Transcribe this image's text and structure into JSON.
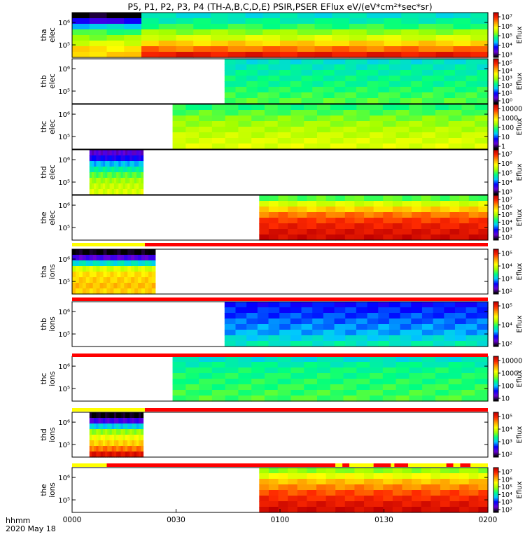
{
  "title": "P5, P1, P2, P3, P4 (TH-A,B,C,D,E) PSIR,PSER EFlux eV/(eV*cm²*sec*sr)",
  "footer": {
    "units_label": "hhmm",
    "date_label": "2020 May 18"
  },
  "colors": {
    "flag_yellow": "#ffff00",
    "flag_red": "#ff0000",
    "colormap": [
      "#000000",
      "#6a00d8",
      "#0000ff",
      "#00c8ff",
      "#00ff80",
      "#a0ff00",
      "#ffff00",
      "#ffa000",
      "#ff2a00",
      "#c00000"
    ]
  },
  "chart_data": {
    "type": "heatmap",
    "x_range": [
      "0000",
      "0200"
    ],
    "x_tick_labels": [
      "0000",
      "0030",
      "0100",
      "0130",
      "0200"
    ],
    "panels": [
      {
        "id": "tha-elec",
        "probe": "tha",
        "species": "elec",
        "y_tick_labels": [
          "10⁵",
          "10⁶"
        ],
        "colorbar": {
          "label": "Eflux",
          "ticks": [
            "10⁷",
            "10⁶",
            "10⁵",
            "10⁴",
            "10³"
          ]
        },
        "data_start_min": 0,
        "data_end_min": 120,
        "mode_switch_min": 21,
        "rows_first": [
          0.0,
          0.18,
          0.35,
          0.48,
          0.55,
          0.62,
          0.7,
          0.72
        ],
        "rows": [
          0.38,
          0.42,
          0.47,
          0.55,
          0.62,
          0.72,
          0.82,
          0.93
        ]
      },
      {
        "id": "thb-elec",
        "probe": "thb",
        "species": "elec",
        "y_tick_labels": [
          "10⁵",
          "10⁶"
        ],
        "colorbar": {
          "label": "Eflux",
          "ticks": [
            "10⁵",
            "10⁴",
            "10³",
            "10²",
            "10¹",
            "10⁰"
          ]
        },
        "data_start_min": 44,
        "data_end_min": 120,
        "rows": [
          0.38,
          0.4,
          0.42,
          0.43,
          0.44,
          0.46,
          0.48,
          0.5
        ]
      },
      {
        "id": "thc-elec",
        "probe": "thc",
        "species": "elec",
        "y_tick_labels": [
          "10⁵",
          "10⁶"
        ],
        "colorbar": {
          "label": "Eflux",
          "ticks": [
            "10000",
            "1000",
            "100",
            "10",
            "1"
          ]
        },
        "data_start_min": 29,
        "data_end_min": 120,
        "rows": [
          0.46,
          0.5,
          0.53,
          0.56,
          0.58,
          0.6,
          0.62,
          0.63
        ]
      },
      {
        "id": "thd-elec",
        "probe": "thd",
        "species": "elec",
        "y_tick_labels": [
          "10⁵",
          "10⁶"
        ],
        "colorbar": {
          "label": "Eflux",
          "ticks": [
            "10⁷",
            "10⁶",
            "10⁵",
            "10⁴",
            "10³"
          ]
        },
        "data_start_min": 5,
        "data_end_min": 20.5,
        "rows": [
          0.12,
          0.2,
          0.33,
          0.42,
          0.5,
          0.56,
          0.6,
          0.62
        ]
      },
      {
        "id": "the-elec",
        "probe": "the",
        "species": "elec",
        "y_tick_labels": [
          "10⁵",
          "10⁶"
        ],
        "colorbar": {
          "label": "Eflux",
          "ticks": [
            "10⁷",
            "10⁶",
            "10⁵",
            "10⁴",
            "10³",
            "10²"
          ]
        },
        "data_start_min": 54,
        "data_end_min": 120,
        "rows": [
          0.5,
          0.62,
          0.72,
          0.82,
          0.88,
          0.92,
          0.95,
          0.97
        ]
      },
      {
        "id": "tha-ions",
        "probe": "tha",
        "species": "ions",
        "y_tick_labels": [
          "10⁵",
          "10⁶"
        ],
        "colorbar": {
          "label": "Eflux",
          "ticks": [
            "10⁵",
            "10⁴",
            "10³",
            "10²"
          ]
        },
        "data_start_min": 0,
        "data_end_min": 24,
        "rows": [
          0.0,
          0.14,
          0.38,
          0.62,
          0.7,
          0.72,
          0.74,
          0.72
        ]
      },
      {
        "id": "thb-ions",
        "probe": "thb",
        "species": "ions",
        "y_tick_labels": [
          "10⁵",
          "10⁶"
        ],
        "colorbar": {
          "label": "Eflux",
          "ticks": [
            "10⁵",
            "10⁴",
            "10²"
          ]
        },
        "data_start_min": 44,
        "data_end_min": 120,
        "rows": [
          0.22,
          0.24,
          0.26,
          0.28,
          0.3,
          0.32,
          0.36,
          0.4
        ]
      },
      {
        "id": "thc-ions",
        "probe": "thc",
        "species": "ions",
        "y_tick_labels": [
          "10⁵",
          "10⁶"
        ],
        "colorbar": {
          "label": "Eflux",
          "ticks": [
            "10000",
            "1000",
            "100",
            "10"
          ]
        },
        "data_start_min": 29,
        "data_end_min": 120,
        "rows": [
          0.38,
          0.42,
          0.44,
          0.45,
          0.46,
          0.47,
          0.48,
          0.49
        ]
      },
      {
        "id": "thd-ions",
        "probe": "thd",
        "species": "ions",
        "y_tick_labels": [
          "10⁵",
          "10⁶"
        ],
        "colorbar": {
          "label": "Eflux",
          "ticks": [
            "10⁵",
            "10⁴",
            "10³",
            "10²"
          ]
        },
        "data_start_min": 5,
        "data_end_min": 20.5,
        "rows": [
          0.0,
          0.15,
          0.35,
          0.55,
          0.65,
          0.72,
          0.82,
          0.95
        ]
      },
      {
        "id": "the-ions",
        "probe": "the",
        "species": "ions",
        "y_tick_labels": [
          "10⁵",
          "10⁶"
        ],
        "colorbar": {
          "label": "Eflux",
          "ticks": [
            "10⁷",
            "10⁶",
            "10⁵",
            "10⁴",
            "10³",
            "10²"
          ]
        },
        "data_start_min": 54,
        "data_end_min": 120,
        "rows": [
          0.55,
          0.65,
          0.74,
          0.8,
          0.86,
          0.9,
          0.94,
          0.97
        ]
      }
    ],
    "mode_flag_bars": [
      {
        "after": "the-elec",
        "segments": [
          {
            "from": 0,
            "to": 21,
            "color": "yellow"
          },
          {
            "from": 21,
            "to": 120,
            "color": "red"
          }
        ]
      },
      {
        "after": "tha-ions",
        "segments": [
          {
            "from": 0,
            "to": 120,
            "color": "red"
          }
        ]
      },
      {
        "after": "thb-ions",
        "segments": [
          {
            "from": 0,
            "to": 120,
            "color": "red"
          }
        ]
      },
      {
        "after": "thc-ions",
        "segments": [
          {
            "from": 0,
            "to": 21,
            "color": "yellow"
          },
          {
            "from": 21,
            "to": 120,
            "color": "red"
          }
        ]
      },
      {
        "after": "thd-ions",
        "segments": [
          {
            "from": 0,
            "to": 10,
            "color": "yellow"
          },
          {
            "from": 10,
            "to": 76,
            "color": "red"
          },
          {
            "from": 76,
            "to": 78,
            "color": "yellow"
          },
          {
            "from": 78,
            "to": 80,
            "color": "red"
          },
          {
            "from": 80,
            "to": 87,
            "color": "yellow"
          },
          {
            "from": 87,
            "to": 92,
            "color": "red"
          },
          {
            "from": 92,
            "to": 93,
            "color": "yellow"
          },
          {
            "from": 93,
            "to": 97,
            "color": "red"
          },
          {
            "from": 97,
            "to": 108,
            "color": "yellow"
          },
          {
            "from": 108,
            "to": 110,
            "color": "red"
          },
          {
            "from": 110,
            "to": 112,
            "color": "yellow"
          },
          {
            "from": 112,
            "to": 115,
            "color": "red"
          },
          {
            "from": 115,
            "to": 120,
            "color": "yellow"
          }
        ]
      }
    ]
  }
}
